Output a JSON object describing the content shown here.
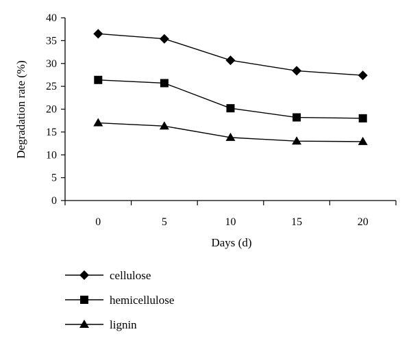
{
  "chart_data": {
    "type": "line",
    "title": "",
    "xlabel": "Days (d)",
    "ylabel": "Degradation rate (%)",
    "x": [
      0,
      5,
      10,
      15,
      20
    ],
    "x_tick_labels": [
      "0",
      "5",
      "10",
      "15",
      "20"
    ],
    "xlim": [
      -2.5,
      22.5
    ],
    "ylim": [
      0,
      40
    ],
    "y_ticks": [
      0,
      5,
      10,
      15,
      20,
      25,
      30,
      35,
      40
    ],
    "y_tick_labels": [
      "0",
      "5",
      "10",
      "15",
      "20",
      "25",
      "30",
      "35",
      "40"
    ],
    "grid": false,
    "legend_placement": "bottom-left",
    "series": [
      {
        "name": "cellulose",
        "marker": "diamond",
        "values": [
          36.5,
          35.4,
          30.7,
          28.4,
          27.4
        ]
      },
      {
        "name": "hemicellulose",
        "marker": "square",
        "values": [
          26.4,
          25.7,
          20.2,
          18.2,
          18.0
        ]
      },
      {
        "name": "lignin",
        "marker": "triangle",
        "values": [
          17.0,
          16.3,
          13.8,
          13.0,
          12.9
        ]
      }
    ]
  }
}
